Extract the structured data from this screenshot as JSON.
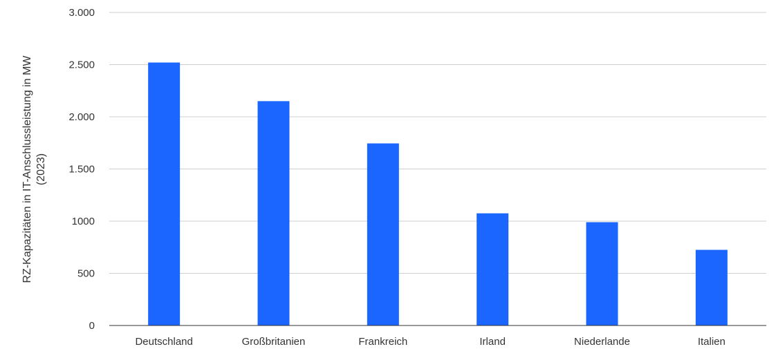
{
  "chart_data": {
    "type": "bar",
    "categories": [
      "Deutschland",
      "Großbritanien",
      "Frankreich",
      "Irland",
      "Niederlande",
      "Italien"
    ],
    "values": [
      2520,
      2150,
      1745,
      1075,
      990,
      725
    ],
    "title": "",
    "xlabel": "",
    "ylabel": [
      "RZ-Kapazitäten in IT-Anschlussleistung in MW",
      "(2023)"
    ],
    "ylim": [
      0,
      3000
    ],
    "yticks": [
      0,
      500,
      1000,
      1500,
      2000,
      2500,
      3000
    ],
    "ytick_labels": [
      "0",
      "500",
      "1000",
      "1.500",
      "2.000",
      "2.500",
      "3.000"
    ],
    "grid": true,
    "bar_color": "#1a66ff"
  }
}
